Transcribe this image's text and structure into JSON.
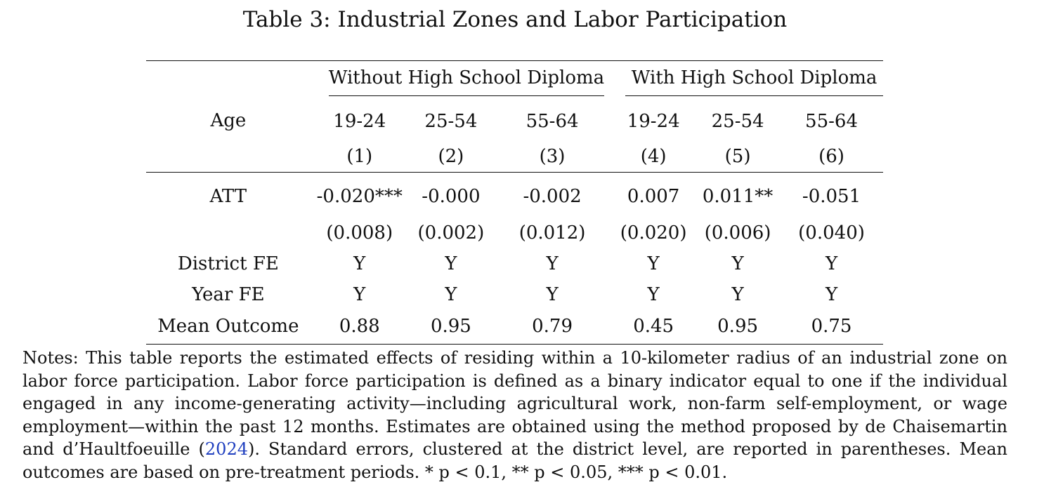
{
  "caption": "Table 3: Industrial Zones and Labor Participation",
  "table": {
    "group_headers": [
      "Without High School Diploma",
      "With High School Diploma"
    ],
    "age_label": "Age",
    "age_groups": [
      "19-24",
      "25-54",
      "55-64",
      "19-24",
      "25-54",
      "55-64"
    ],
    "column_numbers": [
      "(1)",
      "(2)",
      "(3)",
      "(4)",
      "(5)",
      "(6)"
    ],
    "rows": {
      "att": {
        "label": "ATT",
        "values": [
          "-0.020***",
          "-0.000",
          "-0.002",
          "0.007",
          "0.011**",
          "-0.051"
        ],
        "se": [
          "(0.008)",
          "(0.002)",
          "(0.012)",
          "(0.020)",
          "(0.006)",
          "(0.040)"
        ]
      },
      "district_fe": {
        "label": "District FE",
        "values": [
          "Y",
          "Y",
          "Y",
          "Y",
          "Y",
          "Y"
        ]
      },
      "year_fe": {
        "label": "Year FE",
        "values": [
          "Y",
          "Y",
          "Y",
          "Y",
          "Y",
          "Y"
        ]
      },
      "mean_outcome": {
        "label": "Mean Outcome",
        "values": [
          "0.88",
          "0.95",
          "0.79",
          "0.45",
          "0.95",
          "0.75"
        ]
      }
    }
  },
  "notes": {
    "text_before": "Notes: This table reports the estimated effects of residing within a 10-kilometer radius of an industrial zone on labor force participation. Labor force participation is defined as a binary indicator equal to one if the individual engaged in any income-generating activity—including agricultural work, non-farm self-employment, or wage employment—within the past 12 months. Estimates are obtained using the method proposed by de Chaisemartin and d’Haultfoeuille (",
    "citation_year": "2024",
    "text_after": "). Standard errors, clustered at the district level, are reported in parentheses. Mean outcomes are based on pre-treatment periods. * p < 0.1, ** p < 0.05, *** p < 0.01."
  }
}
